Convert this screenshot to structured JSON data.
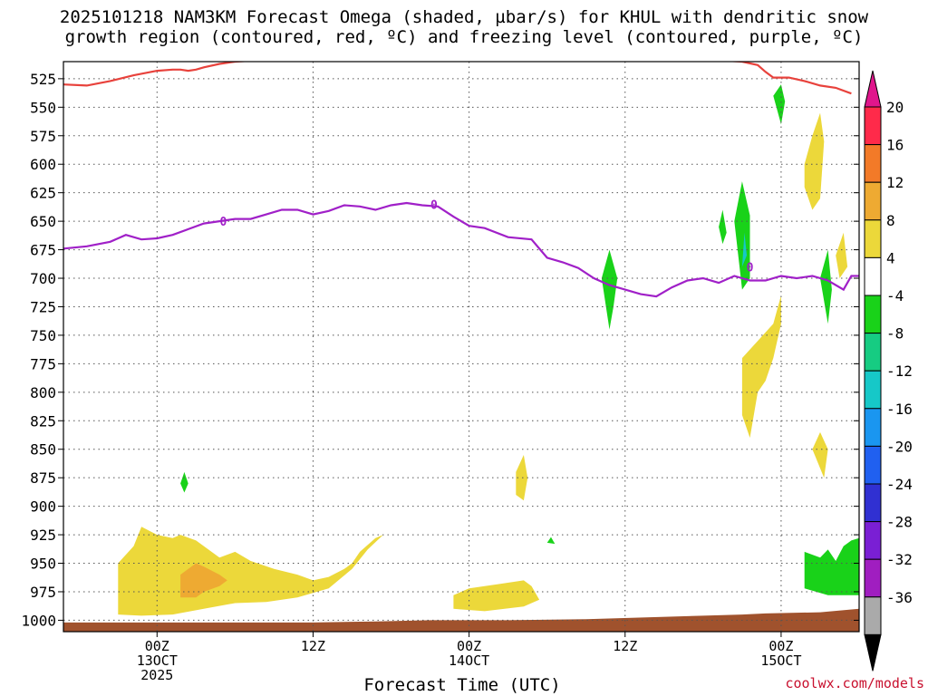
{
  "title": {
    "line1": "2025101218 NAM3KM Forecast Omega (shaded, µbar/s) for KHUL with dendritic snow",
    "line2": "growth region (contoured, red, ºC) and freezing level (contoured, purple, ºC)"
  },
  "chart_data": {
    "type": "heatmap",
    "xlabel": "Forecast Time (UTC)",
    "ylabel": "",
    "y_scale": "pressure (inverted)",
    "ylim": [
      1010,
      510
    ],
    "xlim_hours": [
      -12,
      90
    ],
    "yticks": [
      525,
      550,
      575,
      600,
      625,
      650,
      675,
      700,
      725,
      750,
      775,
      800,
      825,
      850,
      875,
      900,
      925,
      950,
      975,
      1000
    ],
    "xticks": [
      {
        "hour": 0,
        "lines": [
          "00Z",
          "13OCT",
          "2025"
        ]
      },
      {
        "hour": 20,
        "lines": [
          "12Z"
        ]
      },
      {
        "hour": 40,
        "lines": [
          "00Z",
          "14OCT"
        ]
      },
      {
        "hour": 60,
        "lines": [
          "12Z"
        ]
      },
      {
        "hour": 80,
        "lines": [
          "00Z",
          "15OCT"
        ]
      }
    ],
    "grid": true,
    "colorbar": {
      "labels": [
        20,
        16,
        12,
        8,
        4,
        -4,
        -8,
        -12,
        -16,
        -20,
        -24,
        -28,
        -32,
        -36
      ],
      "colors": [
        "#ff2a4a",
        "#f37a28",
        "#eeaa32",
        "#ecd83a",
        "#ffffff",
        "#19d219",
        "#16cc82",
        "#16c8c8",
        "#1a96f0",
        "#2060f0",
        "#3030d2",
        "#7a1fd4",
        "#a01ec0",
        "#aaaaaa"
      ],
      "top_arrow_color": "#e0168c",
      "bottom_arrow_color": "#000000"
    },
    "contours": [
      {
        "color": "#e8423c",
        "level_label": "",
        "points": [
          [
            -12,
            530
          ],
          [
            -9,
            531
          ],
          [
            -6,
            527
          ],
          [
            -3,
            522
          ],
          [
            0,
            518
          ],
          [
            2,
            517
          ],
          [
            3,
            517
          ],
          [
            4,
            518
          ],
          [
            5,
            517
          ],
          [
            6,
            515
          ],
          [
            8,
            512
          ],
          [
            10,
            510
          ],
          [
            15,
            508
          ],
          [
            40,
            508
          ],
          [
            70,
            508
          ],
          [
            75,
            510
          ],
          [
            77,
            513
          ],
          [
            78,
            519
          ],
          [
            79,
            524
          ],
          [
            81,
            524
          ],
          [
            83,
            527
          ],
          [
            85,
            531
          ],
          [
            87,
            533
          ],
          [
            89,
            538
          ]
        ]
      },
      {
        "color": "#a020c8",
        "level_label": "0",
        "points": [
          [
            -12,
            674
          ],
          [
            -9,
            672
          ],
          [
            -6,
            668
          ],
          [
            -4,
            662
          ],
          [
            -2,
            666
          ],
          [
            0,
            665
          ],
          [
            2,
            662
          ],
          [
            4,
            657
          ],
          [
            6,
            652
          ],
          [
            8,
            650
          ],
          [
            10,
            648
          ],
          [
            12,
            648
          ],
          [
            14,
            644
          ],
          [
            16,
            640
          ],
          [
            18,
            640
          ],
          [
            20,
            644
          ],
          [
            22,
            641
          ],
          [
            24,
            636
          ],
          [
            26,
            637
          ],
          [
            28,
            640
          ],
          [
            30,
            636
          ],
          [
            32,
            634
          ],
          [
            34,
            636
          ],
          [
            36,
            637
          ],
          [
            38,
            646
          ],
          [
            40,
            654
          ],
          [
            42,
            656
          ],
          [
            45,
            664
          ],
          [
            48,
            666
          ],
          [
            50,
            682
          ],
          [
            52,
            686
          ],
          [
            54,
            691
          ],
          [
            56,
            700
          ],
          [
            58,
            706
          ],
          [
            60,
            710
          ],
          [
            62,
            714
          ],
          [
            64,
            716
          ],
          [
            66,
            708
          ],
          [
            68,
            702
          ],
          [
            70,
            700
          ],
          [
            72,
            704
          ],
          [
            74,
            698
          ],
          [
            76,
            702
          ],
          [
            78,
            702
          ],
          [
            80,
            698
          ],
          [
            82,
            700
          ],
          [
            84,
            698
          ],
          [
            86,
            702
          ],
          [
            88,
            710
          ],
          [
            89,
            698
          ],
          [
            90,
            698
          ]
        ]
      }
    ],
    "contour_labels": [
      {
        "text": "0",
        "hour": 8.5,
        "p": 650
      },
      {
        "text": "0",
        "hour": 35.5,
        "p": 635
      },
      {
        "text": "0",
        "hour": 76,
        "p": 690
      }
    ],
    "shaded_regions": [
      {
        "value": "4 to 8",
        "color": "#ecd83a",
        "points": [
          [
            -5,
            995
          ],
          [
            -5,
            950
          ],
          [
            -3,
            935
          ],
          [
            -2,
            918
          ],
          [
            0,
            925
          ],
          [
            2,
            928
          ],
          [
            3,
            925
          ],
          [
            5,
            930
          ],
          [
            8,
            945
          ],
          [
            10,
            940
          ],
          [
            12,
            948
          ],
          [
            15,
            955
          ],
          [
            18,
            960
          ],
          [
            20,
            965
          ],
          [
            22,
            962
          ],
          [
            24,
            955
          ],
          [
            25,
            950
          ],
          [
            26,
            940
          ],
          [
            28,
            928
          ],
          [
            29,
            925
          ],
          [
            27,
            938
          ],
          [
            25,
            955
          ],
          [
            22,
            972
          ],
          [
            18,
            980
          ],
          [
            14,
            984
          ],
          [
            10,
            985
          ],
          [
            6,
            990
          ],
          [
            2,
            995
          ],
          [
            -2,
            996
          ]
        ]
      },
      {
        "value": "8 to 12",
        "color": "#eeaa32",
        "points": [
          [
            3,
            980
          ],
          [
            3,
            960
          ],
          [
            5,
            950
          ],
          [
            6,
            953
          ],
          [
            8,
            960
          ],
          [
            9,
            965
          ],
          [
            8,
            970
          ],
          [
            6,
            975
          ],
          [
            5,
            980
          ]
        ]
      },
      {
        "value": "4 to 8",
        "color": "#ecd83a",
        "points": [
          [
            38,
            990
          ],
          [
            38,
            978
          ],
          [
            40,
            972
          ],
          [
            44,
            968
          ],
          [
            47,
            965
          ],
          [
            48,
            970
          ],
          [
            49,
            982
          ],
          [
            47,
            988
          ],
          [
            42,
            992
          ]
        ]
      },
      {
        "value": "4 to 8",
        "color": "#ecd83a",
        "points": [
          [
            46,
            890
          ],
          [
            46,
            870
          ],
          [
            47,
            855
          ],
          [
            47.5,
            875
          ],
          [
            47,
            895
          ]
        ]
      },
      {
        "value": "4 to 8",
        "color": "#ecd83a",
        "points": [
          [
            75,
            820
          ],
          [
            75,
            770
          ],
          [
            77,
            755
          ],
          [
            79,
            740
          ],
          [
            80,
            715
          ],
          [
            80,
            740
          ],
          [
            79,
            770
          ],
          [
            78,
            790
          ],
          [
            77,
            800
          ],
          [
            76,
            840
          ]
        ]
      },
      {
        "value": "4 to 8",
        "color": "#ecd83a",
        "points": [
          [
            83,
            600
          ],
          [
            84,
            575
          ],
          [
            85,
            555
          ],
          [
            85.5,
            580
          ],
          [
            85,
            630
          ],
          [
            84,
            640
          ],
          [
            83,
            620
          ]
        ]
      },
      {
        "value": "4 to 8",
        "color": "#ecd83a",
        "points": [
          [
            87,
            680
          ],
          [
            88,
            660
          ],
          [
            88.5,
            690
          ],
          [
            87.5,
            700
          ]
        ]
      },
      {
        "value": "4 to 8",
        "color": "#ecd83a",
        "points": [
          [
            84,
            850
          ],
          [
            85,
            835
          ],
          [
            86,
            850
          ],
          [
            85.5,
            875
          ]
        ]
      },
      {
        "value": "-4 to -8",
        "color": "#19d219",
        "points": [
          [
            57,
            700
          ],
          [
            58,
            675
          ],
          [
            59,
            700
          ],
          [
            58.5,
            725
          ],
          [
            58,
            745
          ]
        ]
      },
      {
        "value": "-4 to -8",
        "color": "#19d219",
        "points": [
          [
            74,
            650
          ],
          [
            75,
            615
          ],
          [
            76,
            645
          ],
          [
            76,
            700
          ],
          [
            75,
            710
          ]
        ]
      },
      {
        "value": "-4 to -8",
        "color": "#19d219",
        "points": [
          [
            79,
            540
          ],
          [
            80,
            530
          ],
          [
            80.5,
            545
          ],
          [
            80,
            565
          ]
        ]
      },
      {
        "value": "-4 to -8",
        "color": "#19d219",
        "points": [
          [
            72,
            655
          ],
          [
            72.5,
            640
          ],
          [
            73,
            660
          ],
          [
            72.5,
            670
          ]
        ]
      },
      {
        "value": "-4 to -8",
        "color": "#19d219",
        "points": [
          [
            85,
            700
          ],
          [
            86,
            675
          ],
          [
            86.5,
            710
          ],
          [
            86,
            740
          ]
        ]
      },
      {
        "value": "-4 to -8",
        "color": "#19d219",
        "points": [
          [
            83,
            972
          ],
          [
            83,
            940
          ],
          [
            85,
            945
          ],
          [
            86,
            938
          ],
          [
            87,
            948
          ],
          [
            88,
            935
          ],
          [
            89,
            930
          ],
          [
            90,
            928
          ],
          [
            90,
            978
          ],
          [
            86,
            978
          ]
        ]
      },
      {
        "value": "-4 to -8",
        "color": "#19d219",
        "points": [
          [
            3,
            880
          ],
          [
            3.5,
            870
          ],
          [
            4,
            880
          ],
          [
            3.5,
            888
          ]
        ]
      },
      {
        "value": "-4 to -8",
        "color": "#19d219",
        "points": [
          [
            50,
            932
          ],
          [
            50.5,
            927
          ],
          [
            51,
            933
          ]
        ]
      },
      {
        "value": "-8 to -12",
        "color": "#16c8c8",
        "points": [
          [
            75,
            690
          ],
          [
            75.3,
            660
          ],
          [
            75.6,
            680
          ]
        ]
      },
      {
        "value": "ground",
        "color": "#a0522d",
        "points": [
          [
            -12,
            1002
          ],
          [
            20,
            1002
          ],
          [
            28,
            1001
          ],
          [
            35,
            1000
          ],
          [
            45,
            1000
          ],
          [
            55,
            999
          ],
          [
            70,
            996
          ],
          [
            75,
            995
          ],
          [
            78,
            994
          ],
          [
            85,
            993
          ],
          [
            90,
            990
          ],
          [
            90,
            1010
          ],
          [
            -12,
            1010
          ]
        ]
      }
    ]
  },
  "credit": "coolwx.com/models"
}
